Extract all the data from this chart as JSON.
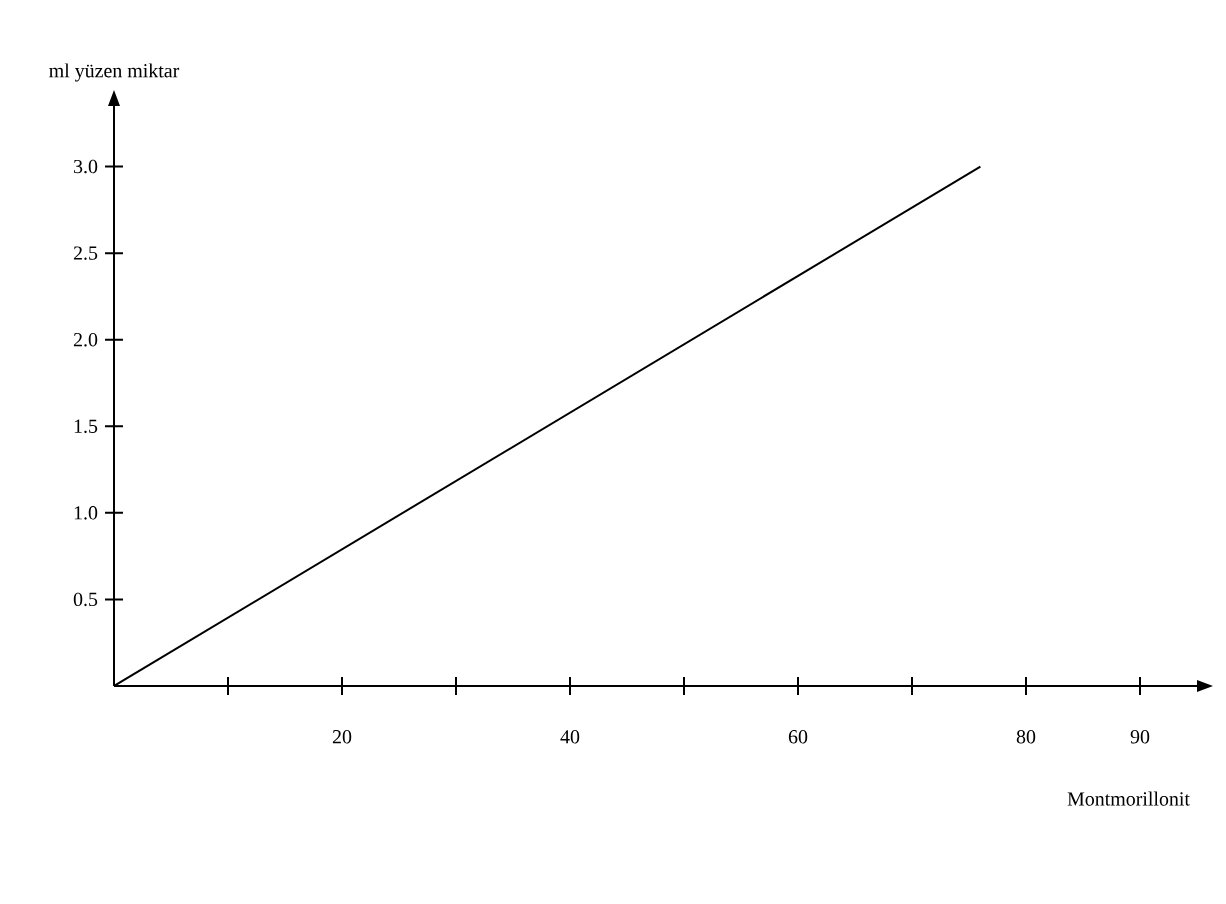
{
  "chart_data": {
    "type": "line",
    "xlabel": "Montmorillonit",
    "ylabel": "ml yüzen miktar",
    "x": [
      0,
      76
    ],
    "series": [
      {
        "color": "#000000",
        "values": [
          0,
          3.0
        ]
      }
    ],
    "xlim": [
      0,
      95
    ],
    "ylim": [
      0,
      3.35
    ],
    "xticks": [
      {
        "value": 10,
        "label": null
      },
      20,
      {
        "value": 30,
        "label": null
      },
      40,
      {
        "value": 50,
        "label": null
      },
      60,
      {
        "value": 70,
        "label": null
      },
      80,
      90
    ],
    "yticks": [
      0.5,
      {
        "value": 1.0,
        "label": "1.0"
      },
      1.5,
      {
        "value": 2.0,
        "label": "2.0"
      },
      2.5,
      {
        "value": 3.0,
        "label": "3.0"
      }
    ],
    "grid": false,
    "marker": "none",
    "line_style": "solid"
  }
}
